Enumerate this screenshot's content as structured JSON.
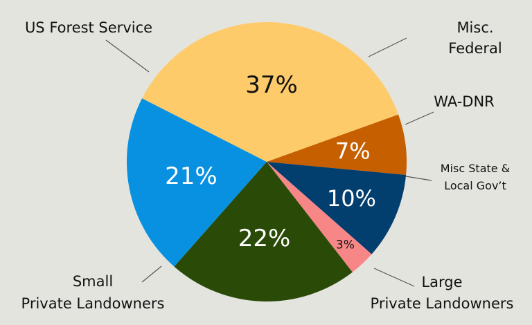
{
  "chart_data": {
    "type": "pie",
    "title": "",
    "slices": [
      {
        "label": "US Forest Service",
        "value": 37,
        "display": "37%",
        "color": "#fecb6b",
        "text_color": "#111111"
      },
      {
        "label": "Misc. Federal",
        "value": 7,
        "display": "7%",
        "color": "#c65f00",
        "text_color": "#ffffff"
      },
      {
        "label": "WA-DNR",
        "value": 10,
        "display": "10%",
        "color": "#023e6e",
        "text_color": "#ffffff"
      },
      {
        "label": "Misc State & Local Gov’t",
        "value": 3,
        "display": "3%",
        "color": "#f78787",
        "text_color": "#111111"
      },
      {
        "label": "Large Private Landowners",
        "value": 22,
        "display": "22%",
        "color": "#2a4a08",
        "text_color": "#ffffff"
      },
      {
        "label": "Small Private Landowners",
        "value": 21,
        "display": "21%",
        "color": "#0991e1",
        "text_color": "#ffffff"
      }
    ]
  },
  "labels": {
    "usfs": "US Forest Service",
    "misc_federal_1": "Misc.",
    "misc_federal_2": "Federal",
    "wadnr": "WA-DNR",
    "misc_state_1": "Misc State &",
    "misc_state_2": "Local Gov’t",
    "large_1": "Large",
    "large_2": "Private Landowners",
    "small_1": "Small",
    "small_2": "Private Landowners"
  }
}
